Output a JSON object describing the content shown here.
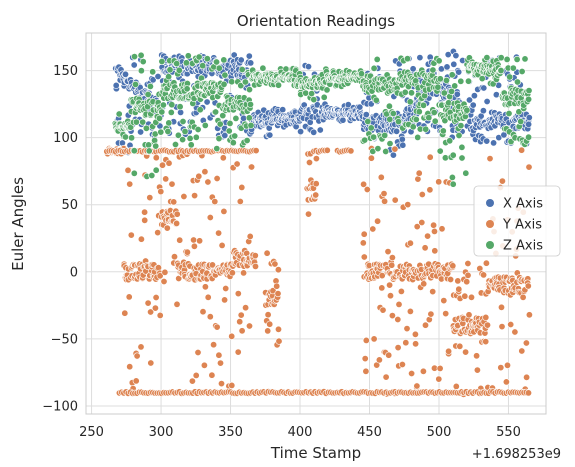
{
  "chart_data": {
    "type": "scatter",
    "title": "Orientation Readings",
    "xlabel": "Time Stamp",
    "ylabel": "Euler Angles",
    "x_offset_label": "+1.698253e9",
    "xlim": [
      246,
      577
    ],
    "ylim": [
      -106,
      178
    ],
    "x_ticks": [
      250,
      300,
      350,
      400,
      450,
      500,
      550
    ],
    "y_ticks": [
      -100,
      -50,
      0,
      50,
      100,
      150
    ],
    "grid": true,
    "legend": "center-right",
    "series": [
      {
        "name": "X Axis",
        "color": "#4c72b0",
        "segments": [
          {
            "x": [
              267,
              300
            ],
            "lo": 88,
            "hi": 160,
            "base": [
              150,
              118
            ]
          },
          {
            "x": [
              300,
              365
            ],
            "lo": 100,
            "hi": 163,
            "base": [
              155,
              150
            ]
          },
          {
            "x": [
              365,
              380
            ],
            "lo": 100,
            "hi": 125,
            "base": [
              112,
              114
            ]
          },
          {
            "x": [
              380,
              400
            ],
            "lo": 108,
            "hi": 122,
            "base": [
              115,
              114
            ]
          },
          {
            "x": [
              400,
              415
            ],
            "lo": 102,
            "hi": 155,
            "base": [
              118,
              120
            ]
          },
          {
            "x": [
              415,
              445
            ],
            "lo": 112,
            "hi": 125,
            "base": [
              120,
              118
            ]
          },
          {
            "x": [
              445,
              475
            ],
            "lo": 85,
            "hi": 158,
            "base": [
              112,
              110
            ]
          },
          {
            "x": [
              475,
              500
            ],
            "lo": 100,
            "hi": 160,
            "base": [
              115,
              140
            ]
          },
          {
            "x": [
              500,
              520
            ],
            "lo": 100,
            "hi": 165,
            "base": [
              140,
              115
            ]
          },
          {
            "x": [
              520,
              565
            ],
            "lo": 95,
            "hi": 160,
            "base": [
              112,
              112
            ]
          }
        ]
      },
      {
        "name": "Y Axis",
        "color": "#dd8452",
        "segments": [
          {
            "x": [
              261,
              273
            ],
            "lo": 88,
            "hi": 92,
            "base": [
              90,
              90
            ]
          },
          {
            "x": [
              273,
              300
            ],
            "lo": -92,
            "hi": 92,
            "base": [
              0,
              0
            ]
          },
          {
            "x": [
              300,
              312
            ],
            "lo": -30,
            "hi": 92,
            "base": [
              40,
              40
            ]
          },
          {
            "x": [
              312,
              352
            ],
            "lo": -92,
            "hi": 92,
            "base": [
              0,
              0
            ]
          },
          {
            "x": [
              352,
              368
            ],
            "lo": -60,
            "hi": 92,
            "base": [
              10,
              10
            ]
          },
          {
            "x": [
              375,
              385
            ],
            "lo": -60,
            "hi": 20,
            "base": [
              -20,
              -20
            ]
          },
          {
            "x": [
              405,
              412
            ],
            "lo": 40,
            "hi": 92,
            "base": [
              60,
              60
            ]
          },
          {
            "x": [
              445,
              510
            ],
            "lo": -92,
            "hi": 92,
            "base": [
              0,
              0
            ]
          },
          {
            "x": [
              510,
              535
            ],
            "lo": -92,
            "hi": 10,
            "base": [
              -40,
              -40
            ]
          },
          {
            "x": [
              535,
              565
            ],
            "lo": -92,
            "hi": 92,
            "base": [
              -10,
              -10
            ]
          }
        ],
        "rails": [
          {
            "x": [
              261,
              290
            ],
            "y": 90
          },
          {
            "x": [
              290,
              370
            ],
            "y": 90
          },
          {
            "x": [
              410,
              420
            ],
            "y": 90
          },
          {
            "x": [
              427,
              437
            ],
            "y": 90
          },
          {
            "x": [
              270,
              565
            ],
            "y": -90
          }
        ]
      },
      {
        "name": "Z Axis",
        "color": "#55a868",
        "segments": [
          {
            "x": [
              267,
              278
            ],
            "lo": 100,
            "hi": 118,
            "base": [
              108,
              110
            ]
          },
          {
            "x": [
              278,
              300
            ],
            "lo": 65,
            "hi": 162,
            "base": [
              125,
              120
            ]
          },
          {
            "x": [
              300,
              345
            ],
            "lo": 90,
            "hi": 163,
            "base": [
              135,
              135
            ]
          },
          {
            "x": [
              345,
              365
            ],
            "lo": 92,
            "hi": 152,
            "base": [
              125,
              125
            ]
          },
          {
            "x": [
              365,
              400
            ],
            "lo": 138,
            "hi": 152,
            "base": [
              145,
              145
            ]
          },
          {
            "x": [
              400,
              420
            ],
            "lo": 128,
            "hi": 152,
            "base": [
              140,
              142
            ]
          },
          {
            "x": [
              420,
              445
            ],
            "lo": 138,
            "hi": 150,
            "base": [
              144,
              146
            ]
          },
          {
            "x": [
              445,
              470
            ],
            "lo": 85,
            "hi": 160,
            "base": [
              140,
              140
            ]
          },
          {
            "x": [
              470,
              500
            ],
            "lo": 100,
            "hi": 160,
            "base": [
              145,
              140
            ]
          },
          {
            "x": [
              500,
              520
            ],
            "lo": 65,
            "hi": 165,
            "base": [
              120,
              120
            ]
          },
          {
            "x": [
              520,
              545
            ],
            "lo": 140,
            "hi": 160,
            "base": [
              152,
              150
            ]
          },
          {
            "x": [
              545,
              565
            ],
            "lo": 95,
            "hi": 160,
            "base": [
              130,
              130
            ]
          }
        ]
      }
    ]
  }
}
